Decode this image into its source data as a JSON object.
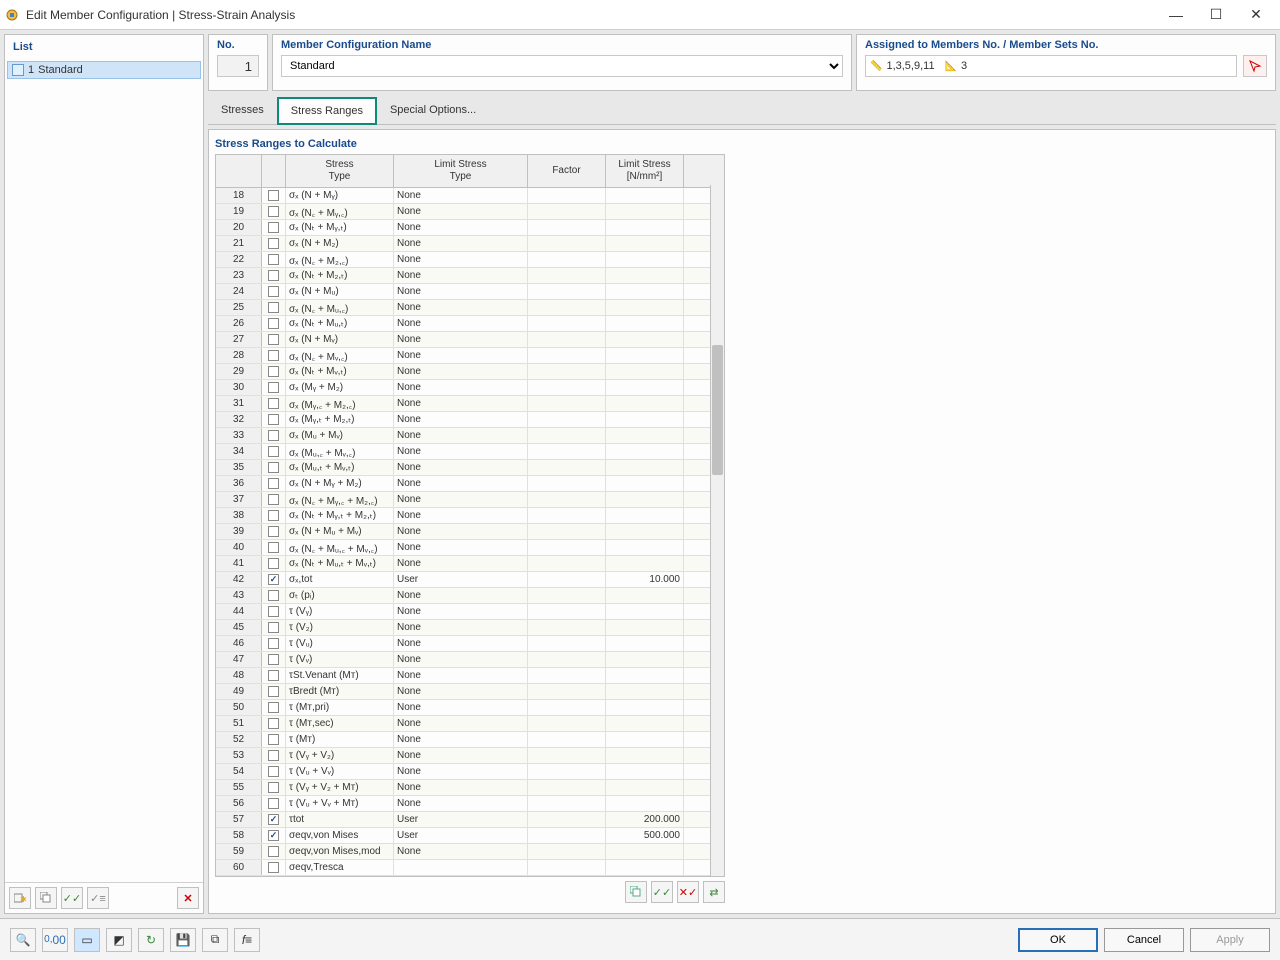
{
  "window": {
    "title": "Edit Member Configuration | Stress-Strain Analysis"
  },
  "left": {
    "header": "List",
    "item_no": "1",
    "item_name": "Standard"
  },
  "header": {
    "no_label": "No.",
    "no_value": "1",
    "name_label": "Member Configuration Name",
    "name_value": "Standard",
    "assign_label": "Assigned to Members No. / Member Sets No.",
    "assign1": "1,3,5,9,11",
    "assign2": "3"
  },
  "tabs": {
    "t1": "Stresses",
    "t2": "Stress Ranges",
    "t3": "Special Options..."
  },
  "section_title": "Stress Ranges to Calculate",
  "columns": {
    "stype": "Stress\nType",
    "ltype": "Limit Stress\nType",
    "factor": "Factor",
    "limit": "Limit Stress\n[N/mm²]"
  },
  "rows": [
    {
      "n": "18",
      "c": false,
      "s": "σₓ (N + Mᵧ)",
      "l": "None",
      "f": "",
      "v": ""
    },
    {
      "n": "19",
      "c": false,
      "s": "σₓ (N꜀ + Mᵧ,꜀)",
      "l": "None",
      "f": "",
      "v": ""
    },
    {
      "n": "20",
      "c": false,
      "s": "σₓ (Nₜ + Mᵧ,ₜ)",
      "l": "None",
      "f": "",
      "v": ""
    },
    {
      "n": "21",
      "c": false,
      "s": "σₓ (N + M₂)",
      "l": "None",
      "f": "",
      "v": ""
    },
    {
      "n": "22",
      "c": false,
      "s": "σₓ (N꜀ + M₂,꜀)",
      "l": "None",
      "f": "",
      "v": ""
    },
    {
      "n": "23",
      "c": false,
      "s": "σₓ (Nₜ + M₂,ₜ)",
      "l": "None",
      "f": "",
      "v": ""
    },
    {
      "n": "24",
      "c": false,
      "s": "σₓ (N + Mᵤ)",
      "l": "None",
      "f": "",
      "v": ""
    },
    {
      "n": "25",
      "c": false,
      "s": "σₓ (N꜀ + Mᵤ,꜀)",
      "l": "None",
      "f": "",
      "v": ""
    },
    {
      "n": "26",
      "c": false,
      "s": "σₓ (Nₜ + Mᵤ,ₜ)",
      "l": "None",
      "f": "",
      "v": ""
    },
    {
      "n": "27",
      "c": false,
      "s": "σₓ (N + Mᵥ)",
      "l": "None",
      "f": "",
      "v": ""
    },
    {
      "n": "28",
      "c": false,
      "s": "σₓ (N꜀ + Mᵥ,꜀)",
      "l": "None",
      "f": "",
      "v": ""
    },
    {
      "n": "29",
      "c": false,
      "s": "σₓ (Nₜ + Mᵥ,ₜ)",
      "l": "None",
      "f": "",
      "v": ""
    },
    {
      "n": "30",
      "c": false,
      "s": "σₓ (Mᵧ + M₂)",
      "l": "None",
      "f": "",
      "v": ""
    },
    {
      "n": "31",
      "c": false,
      "s": "σₓ (Mᵧ,꜀ + M₂,꜀)",
      "l": "None",
      "f": "",
      "v": ""
    },
    {
      "n": "32",
      "c": false,
      "s": "σₓ (Mᵧ,ₜ + M₂,ₜ)",
      "l": "None",
      "f": "",
      "v": ""
    },
    {
      "n": "33",
      "c": false,
      "s": "σₓ (Mᵤ + Mᵥ)",
      "l": "None",
      "f": "",
      "v": ""
    },
    {
      "n": "34",
      "c": false,
      "s": "σₓ (Mᵤ,꜀ + Mᵥ,꜀)",
      "l": "None",
      "f": "",
      "v": ""
    },
    {
      "n": "35",
      "c": false,
      "s": "σₓ (Mᵤ,ₜ + Mᵥ,ₜ)",
      "l": "None",
      "f": "",
      "v": ""
    },
    {
      "n": "36",
      "c": false,
      "s": "σₓ (N + Mᵧ + M₂)",
      "l": "None",
      "f": "",
      "v": ""
    },
    {
      "n": "37",
      "c": false,
      "s": "σₓ (N꜀ + Mᵧ,꜀ + M₂,꜀)",
      "l": "None",
      "f": "",
      "v": ""
    },
    {
      "n": "38",
      "c": false,
      "s": "σₓ (Nₜ + Mᵧ,ₜ + M₂,ₜ)",
      "l": "None",
      "f": "",
      "v": ""
    },
    {
      "n": "39",
      "c": false,
      "s": "σₓ (N + Mᵤ + Mᵥ)",
      "l": "None",
      "f": "",
      "v": ""
    },
    {
      "n": "40",
      "c": false,
      "s": "σₓ (N꜀ + Mᵤ,꜀ + Mᵥ,꜀)",
      "l": "None",
      "f": "",
      "v": ""
    },
    {
      "n": "41",
      "c": false,
      "s": "σₓ (Nₜ + Mᵤ,ₜ + Mᵥ,ₜ)",
      "l": "None",
      "f": "",
      "v": ""
    },
    {
      "n": "42",
      "c": true,
      "s": "σₓ,tot",
      "l": "User",
      "f": "",
      "v": "10.000"
    },
    {
      "n": "43",
      "c": false,
      "s": "σₜ (pᵢ)",
      "l": "None",
      "f": "",
      "v": ""
    },
    {
      "n": "44",
      "c": false,
      "s": "τ (Vᵧ)",
      "l": "None",
      "f": "",
      "v": ""
    },
    {
      "n": "45",
      "c": false,
      "s": "τ (V₂)",
      "l": "None",
      "f": "",
      "v": ""
    },
    {
      "n": "46",
      "c": false,
      "s": "τ (Vᵤ)",
      "l": "None",
      "f": "",
      "v": ""
    },
    {
      "n": "47",
      "c": false,
      "s": "τ (Vᵥ)",
      "l": "None",
      "f": "",
      "v": ""
    },
    {
      "n": "48",
      "c": false,
      "s": "τSt.Venant (Mᴛ)",
      "l": "None",
      "f": "",
      "v": ""
    },
    {
      "n": "49",
      "c": false,
      "s": "τBredt (Mᴛ)",
      "l": "None",
      "f": "",
      "v": ""
    },
    {
      "n": "50",
      "c": false,
      "s": "τ (Mᴛ,pri)",
      "l": "None",
      "f": "",
      "v": ""
    },
    {
      "n": "51",
      "c": false,
      "s": "τ (Mᴛ,sec)",
      "l": "None",
      "f": "",
      "v": ""
    },
    {
      "n": "52",
      "c": false,
      "s": "τ (Mᴛ)",
      "l": "None",
      "f": "",
      "v": ""
    },
    {
      "n": "53",
      "c": false,
      "s": "τ (Vᵧ + V₂)",
      "l": "None",
      "f": "",
      "v": ""
    },
    {
      "n": "54",
      "c": false,
      "s": "τ (Vᵤ + Vᵥ)",
      "l": "None",
      "f": "",
      "v": ""
    },
    {
      "n": "55",
      "c": false,
      "s": "τ (Vᵧ + V₂ + Mᴛ)",
      "l": "None",
      "f": "",
      "v": ""
    },
    {
      "n": "56",
      "c": false,
      "s": "τ (Vᵤ + Vᵥ + Mᴛ)",
      "l": "None",
      "f": "",
      "v": ""
    },
    {
      "n": "57",
      "c": true,
      "s": "τtot",
      "l": "User",
      "f": "",
      "v": "200.000"
    },
    {
      "n": "58",
      "c": true,
      "s": "σeqv,von Mises",
      "l": "User",
      "f": "",
      "v": "500.000"
    },
    {
      "n": "59",
      "c": false,
      "s": "σeqv,von Mises,mod",
      "l": "None",
      "f": "",
      "v": ""
    },
    {
      "n": "60",
      "c": false,
      "s": "σeqv,Tresca",
      "l": "",
      "f": "",
      "v": ""
    }
  ],
  "buttons": {
    "ok": "OK",
    "cancel": "Cancel",
    "apply": "Apply"
  }
}
